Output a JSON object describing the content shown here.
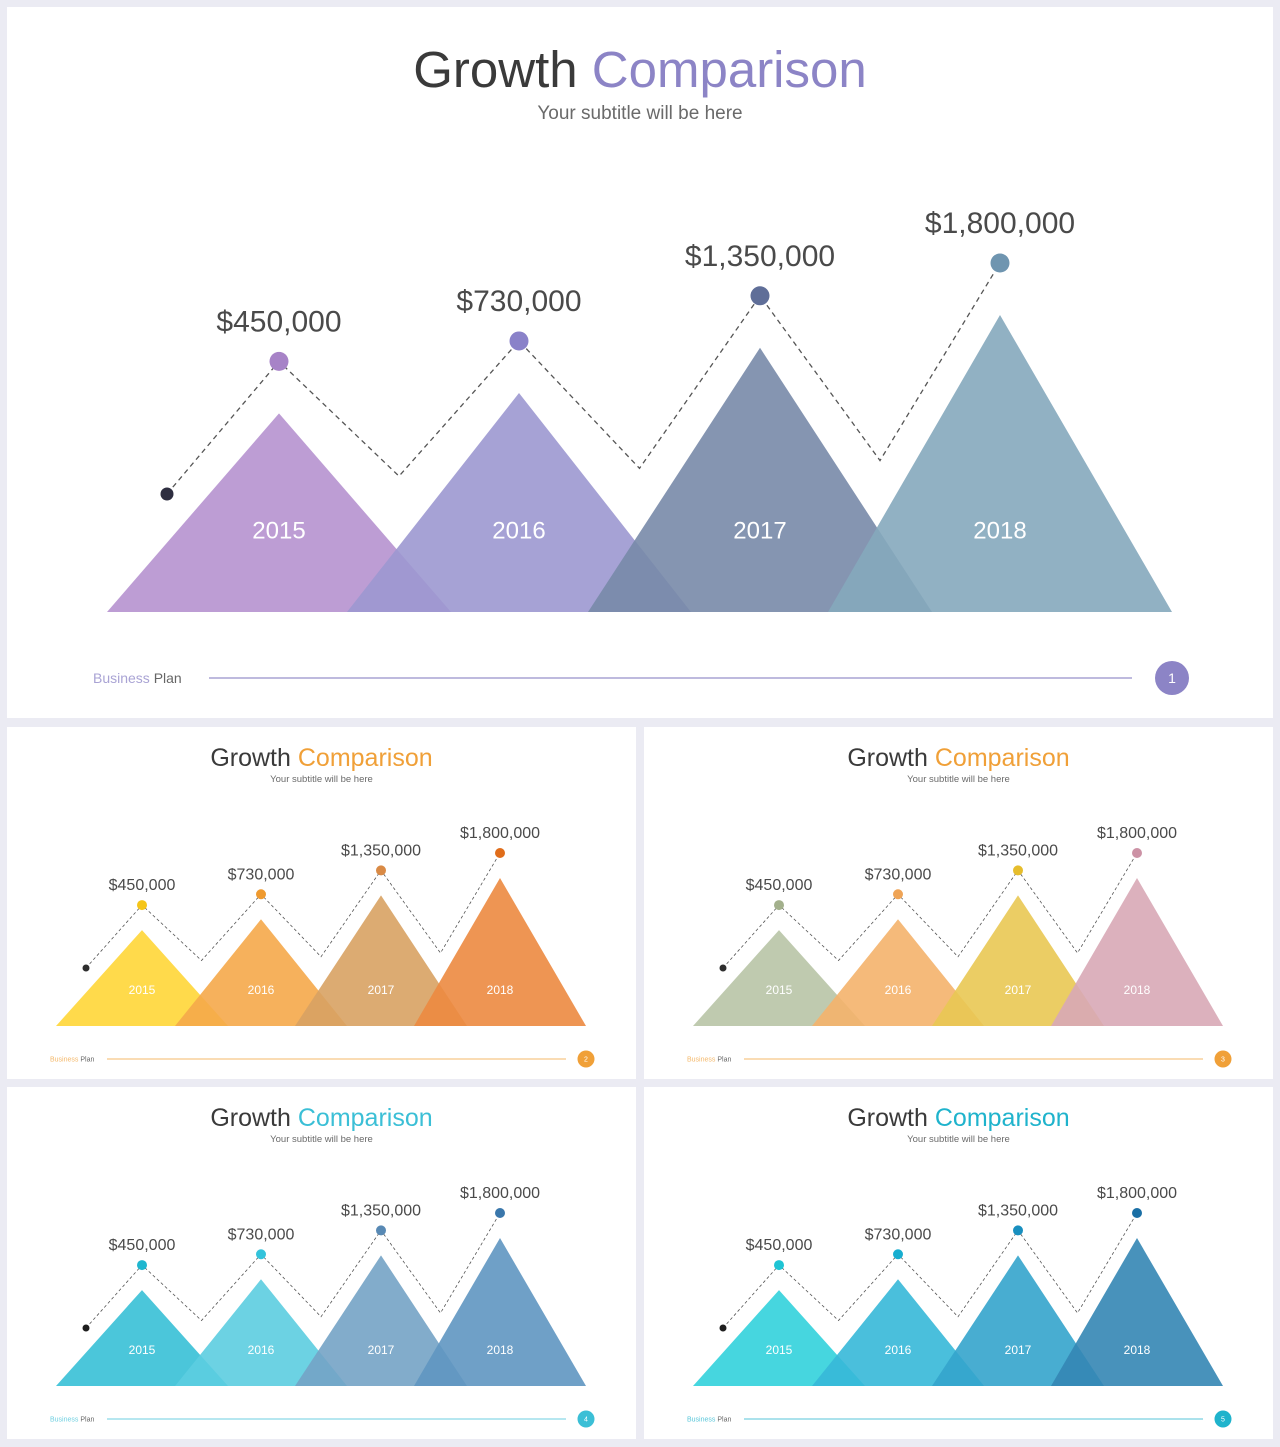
{
  "slides": [
    {
      "title": "Growth",
      "title_accent": "Comparison",
      "subtitle": "Your subtitle will be here",
      "footer_light": "Business",
      "footer_dark": "Plan",
      "page": "1",
      "accent": "#8c84c6",
      "series_colors": [
        "#b692cf",
        "#9c98d0",
        "#7889a9",
        "#85a8bd"
      ],
      "dot_colors": [
        "#a783c7",
        "#8a82c9",
        "#5f6e98",
        "#6f95b0"
      ],
      "start_dot": "#2e2e40"
    },
    {
      "title": "Growth",
      "title_accent": "Comparison",
      "subtitle": "Your subtitle will be here",
      "footer_light": "Business",
      "footer_dark": "Plan",
      "page": "2",
      "accent": "#f0a038",
      "series_colors": [
        "#ffd637",
        "#f5a94a",
        "#d8a263",
        "#ec8a40"
      ],
      "dot_colors": [
        "#f5c518",
        "#ef9a2f",
        "#d98a45",
        "#e06d1a"
      ],
      "start_dot": "#2e2e2e"
    },
    {
      "title": "Growth",
      "title_accent": "Comparison",
      "subtitle": "Your subtitle will be here",
      "footer_light": "Business",
      "footer_dark": "Plan",
      "page": "3",
      "accent": "#f0a038",
      "series_colors": [
        "#b8c4a6",
        "#f4b26c",
        "#e9c853",
        "#d8a9b6"
      ],
      "dot_colors": [
        "#a3b08c",
        "#efa456",
        "#e6bd2c",
        "#cc92a5"
      ],
      "start_dot": "#2e2e2e"
    },
    {
      "title": "Growth",
      "title_accent": "Comparison",
      "subtitle": "Your subtitle will be here",
      "footer_light": "Business",
      "footer_dark": "Plan",
      "page": "4",
      "accent": "#3bbfd6",
      "series_colors": [
        "#37c0d6",
        "#5ccde0",
        "#74a3c5",
        "#5f96c1"
      ],
      "dot_colors": [
        "#1fb6cf",
        "#33c3db",
        "#5889b4",
        "#3a77ab"
      ],
      "start_dot": "#1e1e1e"
    },
    {
      "title": "Growth",
      "title_accent": "Comparison",
      "subtitle": "Your subtitle will be here",
      "footer_light": "Business",
      "footer_dark": "Plan",
      "page": "5",
      "accent": "#1fb3cc",
      "series_colors": [
        "#32d2dc",
        "#36b8d8",
        "#34a4cc",
        "#3486b4"
      ],
      "dot_colors": [
        "#1fc4d4",
        "#18aed0",
        "#188fbf",
        "#1a6fa5"
      ],
      "start_dot": "#1e1e1e"
    }
  ],
  "chart_data": {
    "type": "area",
    "categories": [
      "2015",
      "2016",
      "2017",
      "2018"
    ],
    "values": [
      450000,
      730000,
      1350000,
      1800000
    ],
    "value_labels": [
      "$450,000",
      "$730,000",
      "$1,350,000",
      "$1,800,000"
    ],
    "title": "Growth Comparison",
    "subtitle": "Your subtitle will be here",
    "xlabel": "",
    "ylabel": "",
    "grid": false,
    "legend": "none"
  }
}
